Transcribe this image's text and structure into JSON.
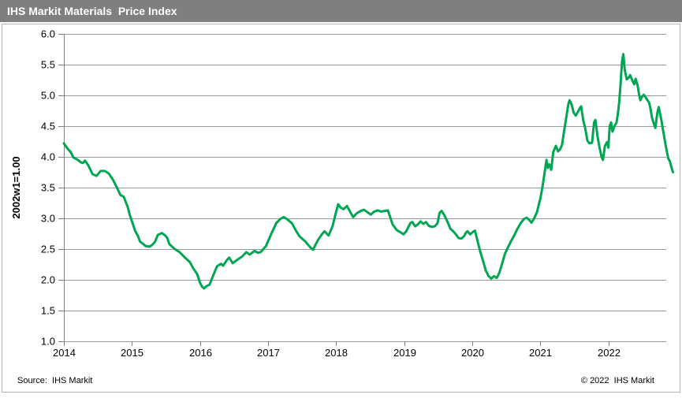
{
  "header": {
    "title": "IHS Markit Materials  Price Index"
  },
  "footer": {
    "source": "Source:  IHS Markit",
    "copyright": "© 2022  IHS Markit"
  },
  "colors": {
    "titlebar_bg": "#7f7f7f",
    "titlebar_text": "#ffffff",
    "frame_border": "#b3b3b3"
  },
  "chart_data": {
    "type": "line",
    "title": "IHS Markit Materials Price Index",
    "xlabel": "",
    "ylabel": "2002w1=1.00",
    "ylim": [
      1.0,
      6.0
    ],
    "xlim": [
      2014,
      2022.85
    ],
    "grid": "horizontal",
    "legend": "none",
    "line_color": "#00a651",
    "grid_color": "#999999",
    "axis_color": "#808080",
    "y_ticks": [
      6.0,
      5.5,
      5.0,
      4.5,
      4.0,
      3.5,
      3.0,
      2.5,
      2.0,
      1.5,
      1.0
    ],
    "y_tick_labels": [
      "6.0",
      "5.5",
      "5.0",
      "4.5",
      "4.0",
      "3.5",
      "3.0",
      "2.5",
      "2.0",
      "1.5",
      "1.0"
    ],
    "x_ticks": [
      2014,
      2015,
      2016,
      2017,
      2018,
      2019,
      2020,
      2021,
      2022
    ],
    "x_tick_labels": [
      "2014",
      "2015",
      "2016",
      "2017",
      "2018",
      "2019",
      "2020",
      "2021",
      "2022"
    ],
    "series": [
      {
        "name": "IHS Markit Materials Price Index",
        "points": [
          [
            2014.0,
            4.22
          ],
          [
            2014.05,
            4.14
          ],
          [
            2014.1,
            4.08
          ],
          [
            2014.14,
            3.99
          ],
          [
            2014.19,
            3.96
          ],
          [
            2014.22,
            3.94
          ],
          [
            2014.25,
            3.91
          ],
          [
            2014.28,
            3.9
          ],
          [
            2014.31,
            3.94
          ],
          [
            2014.36,
            3.86
          ],
          [
            2014.42,
            3.72
          ],
          [
            2014.48,
            3.69
          ],
          [
            2014.54,
            3.77
          ],
          [
            2014.6,
            3.77
          ],
          [
            2014.66,
            3.73
          ],
          [
            2014.72,
            3.63
          ],
          [
            2014.78,
            3.5
          ],
          [
            2014.83,
            3.38
          ],
          [
            2014.88,
            3.35
          ],
          [
            2014.94,
            3.18
          ],
          [
            2014.97,
            3.05
          ],
          [
            2015.01,
            2.92
          ],
          [
            2015.05,
            2.79
          ],
          [
            2015.09,
            2.71
          ],
          [
            2015.12,
            2.62
          ],
          [
            2015.17,
            2.58
          ],
          [
            2015.2,
            2.55
          ],
          [
            2015.26,
            2.54
          ],
          [
            2015.3,
            2.57
          ],
          [
            2015.34,
            2.62
          ],
          [
            2015.38,
            2.73
          ],
          [
            2015.44,
            2.76
          ],
          [
            2015.49,
            2.72
          ],
          [
            2015.52,
            2.68
          ],
          [
            2015.55,
            2.58
          ],
          [
            2015.63,
            2.5
          ],
          [
            2015.7,
            2.45
          ],
          [
            2015.78,
            2.36
          ],
          [
            2015.85,
            2.29
          ],
          [
            2015.9,
            2.19
          ],
          [
            2015.96,
            2.09
          ],
          [
            2016.0,
            1.95
          ],
          [
            2016.03,
            1.89
          ],
          [
            2016.06,
            1.86
          ],
          [
            2016.1,
            1.9
          ],
          [
            2016.14,
            1.92
          ],
          [
            2016.19,
            2.06
          ],
          [
            2016.25,
            2.22
          ],
          [
            2016.31,
            2.26
          ],
          [
            2016.34,
            2.23
          ],
          [
            2016.4,
            2.33
          ],
          [
            2016.43,
            2.36
          ],
          [
            2016.48,
            2.27
          ],
          [
            2016.54,
            2.32
          ],
          [
            2016.62,
            2.38
          ],
          [
            2016.68,
            2.45
          ],
          [
            2016.73,
            2.41
          ],
          [
            2016.8,
            2.47
          ],
          [
            2016.85,
            2.44
          ],
          [
            2016.89,
            2.45
          ],
          [
            2016.97,
            2.55
          ],
          [
            2017.04,
            2.73
          ],
          [
            2017.12,
            2.92
          ],
          [
            2017.18,
            2.99
          ],
          [
            2017.23,
            3.02
          ],
          [
            2017.29,
            2.98
          ],
          [
            2017.35,
            2.92
          ],
          [
            2017.41,
            2.8
          ],
          [
            2017.46,
            2.71
          ],
          [
            2017.55,
            2.62
          ],
          [
            2017.62,
            2.53
          ],
          [
            2017.66,
            2.49
          ],
          [
            2017.73,
            2.64
          ],
          [
            2017.79,
            2.74
          ],
          [
            2017.83,
            2.79
          ],
          [
            2017.89,
            2.72
          ],
          [
            2017.95,
            2.88
          ],
          [
            2017.99,
            3.06
          ],
          [
            2018.03,
            3.23
          ],
          [
            2018.07,
            3.17
          ],
          [
            2018.11,
            3.15
          ],
          [
            2018.16,
            3.2
          ],
          [
            2018.21,
            3.1
          ],
          [
            2018.25,
            3.02
          ],
          [
            2018.3,
            3.08
          ],
          [
            2018.36,
            3.12
          ],
          [
            2018.41,
            3.14
          ],
          [
            2018.46,
            3.1
          ],
          [
            2018.51,
            3.06
          ],
          [
            2018.56,
            3.11
          ],
          [
            2018.61,
            3.13
          ],
          [
            2018.66,
            3.11
          ],
          [
            2018.71,
            3.12
          ],
          [
            2018.76,
            3.13
          ],
          [
            2018.8,
            3.0
          ],
          [
            2018.83,
            2.9
          ],
          [
            2018.89,
            2.81
          ],
          [
            2018.95,
            2.77
          ],
          [
            2018.99,
            2.74
          ],
          [
            2019.03,
            2.79
          ],
          [
            2019.09,
            2.92
          ],
          [
            2019.12,
            2.94
          ],
          [
            2019.16,
            2.87
          ],
          [
            2019.2,
            2.9
          ],
          [
            2019.24,
            2.95
          ],
          [
            2019.28,
            2.91
          ],
          [
            2019.32,
            2.94
          ],
          [
            2019.36,
            2.88
          ],
          [
            2019.41,
            2.86
          ],
          [
            2019.45,
            2.87
          ],
          [
            2019.49,
            2.92
          ],
          [
            2019.52,
            3.09
          ],
          [
            2019.55,
            3.12
          ],
          [
            2019.59,
            3.05
          ],
          [
            2019.63,
            2.96
          ],
          [
            2019.68,
            2.83
          ],
          [
            2019.72,
            2.79
          ],
          [
            2019.76,
            2.74
          ],
          [
            2019.8,
            2.68
          ],
          [
            2019.84,
            2.67
          ],
          [
            2019.88,
            2.71
          ],
          [
            2019.91,
            2.77
          ],
          [
            2019.93,
            2.79
          ],
          [
            2019.97,
            2.74
          ],
          [
            2020.01,
            2.78
          ],
          [
            2020.04,
            2.8
          ],
          [
            2020.08,
            2.62
          ],
          [
            2020.12,
            2.45
          ],
          [
            2020.16,
            2.3
          ],
          [
            2020.2,
            2.15
          ],
          [
            2020.24,
            2.06
          ],
          [
            2020.28,
            2.02
          ],
          [
            2020.32,
            2.06
          ],
          [
            2020.36,
            2.03
          ],
          [
            2020.4,
            2.12
          ],
          [
            2020.44,
            2.27
          ],
          [
            2020.48,
            2.42
          ],
          [
            2020.52,
            2.52
          ],
          [
            2020.57,
            2.63
          ],
          [
            2020.62,
            2.73
          ],
          [
            2020.66,
            2.82
          ],
          [
            2020.71,
            2.92
          ],
          [
            2020.76,
            2.99
          ],
          [
            2020.8,
            3.01
          ],
          [
            2020.84,
            2.97
          ],
          [
            2020.87,
            2.93
          ],
          [
            2020.91,
            3.0
          ],
          [
            2020.95,
            3.1
          ],
          [
            2021.0,
            3.32
          ],
          [
            2021.03,
            3.5
          ],
          [
            2021.06,
            3.72
          ],
          [
            2021.09,
            3.95
          ],
          [
            2021.11,
            3.82
          ],
          [
            2021.13,
            3.88
          ],
          [
            2021.16,
            3.79
          ],
          [
            2021.19,
            4.08
          ],
          [
            2021.23,
            4.18
          ],
          [
            2021.26,
            4.09
          ],
          [
            2021.29,
            4.12
          ],
          [
            2021.32,
            4.2
          ],
          [
            2021.35,
            4.42
          ],
          [
            2021.38,
            4.63
          ],
          [
            2021.41,
            4.85
          ],
          [
            2021.43,
            4.92
          ],
          [
            2021.46,
            4.85
          ],
          [
            2021.49,
            4.72
          ],
          [
            2021.52,
            4.67
          ],
          [
            2021.55,
            4.73
          ],
          [
            2021.58,
            4.79
          ],
          [
            2021.6,
            4.82
          ],
          [
            2021.63,
            4.6
          ],
          [
            2021.66,
            4.46
          ],
          [
            2021.69,
            4.27
          ],
          [
            2021.72,
            4.22
          ],
          [
            2021.76,
            4.23
          ],
          [
            2021.79,
            4.56
          ],
          [
            2021.81,
            4.6
          ],
          [
            2021.84,
            4.34
          ],
          [
            2021.87,
            4.15
          ],
          [
            2021.9,
            4.0
          ],
          [
            2021.92,
            3.95
          ],
          [
            2021.95,
            4.18
          ],
          [
            2021.98,
            4.24
          ],
          [
            2022.0,
            4.15
          ],
          [
            2022.02,
            4.5
          ],
          [
            2022.04,
            4.56
          ],
          [
            2022.06,
            4.41
          ],
          [
            2022.09,
            4.5
          ],
          [
            2022.12,
            4.56
          ],
          [
            2022.14,
            4.7
          ],
          [
            2022.16,
            4.9
          ],
          [
            2022.18,
            5.2
          ],
          [
            2022.2,
            5.55
          ],
          [
            2022.22,
            5.67
          ],
          [
            2022.24,
            5.42
          ],
          [
            2022.27,
            5.26
          ],
          [
            2022.3,
            5.29
          ],
          [
            2022.32,
            5.33
          ],
          [
            2022.35,
            5.25
          ],
          [
            2022.38,
            5.18
          ],
          [
            2022.4,
            5.27
          ],
          [
            2022.43,
            5.16
          ],
          [
            2022.45,
            5.02
          ],
          [
            2022.47,
            4.92
          ],
          [
            2022.49,
            4.97
          ],
          [
            2022.52,
            5.01
          ],
          [
            2022.54,
            4.98
          ],
          [
            2022.57,
            4.93
          ],
          [
            2022.6,
            4.88
          ],
          [
            2022.62,
            4.78
          ],
          [
            2022.64,
            4.64
          ],
          [
            2022.67,
            4.53
          ],
          [
            2022.69,
            4.47
          ],
          [
            2022.72,
            4.72
          ],
          [
            2022.74,
            4.81
          ],
          [
            2022.76,
            4.7
          ],
          [
            2022.78,
            4.59
          ],
          [
            2022.8,
            4.45
          ],
          [
            2022.82,
            4.33
          ],
          [
            2022.84,
            4.2
          ],
          [
            2022.86,
            4.08
          ],
          [
            2022.88,
            3.97
          ],
          [
            2022.9,
            3.94
          ],
          [
            2022.92,
            3.86
          ],
          [
            2022.94,
            3.78
          ],
          [
            2022.95,
            3.75
          ]
        ]
      }
    ]
  }
}
